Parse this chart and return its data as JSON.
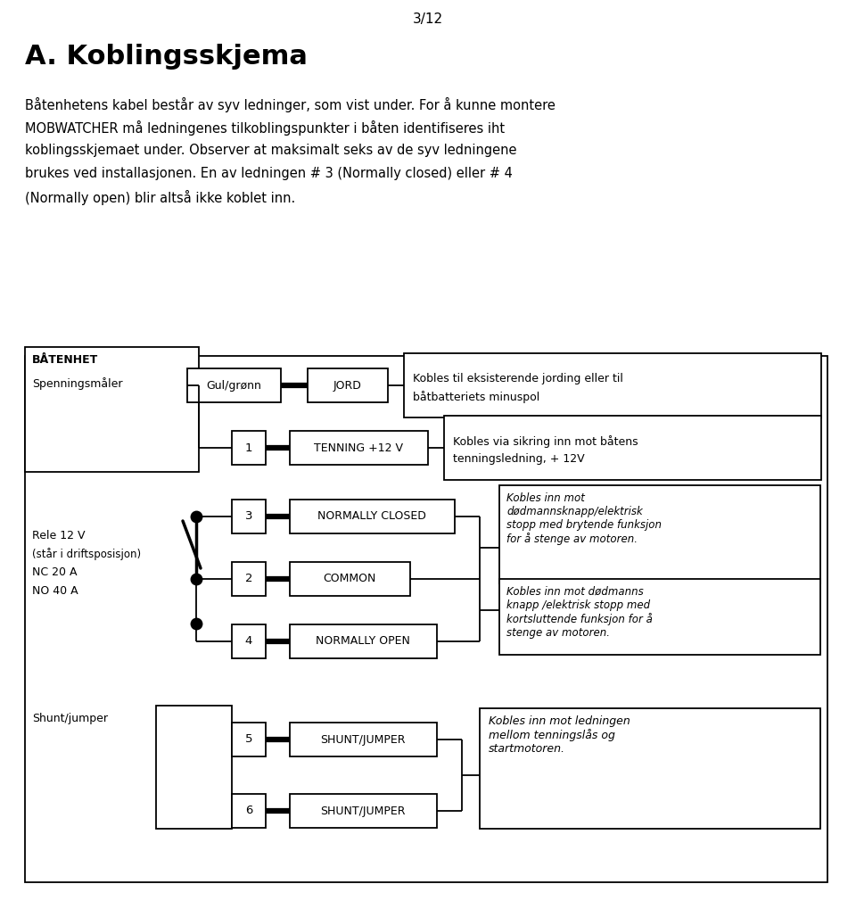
{
  "page_number": "3/12",
  "title": "A. Koblingsskjema",
  "intro_line1": "Båtenhetens kabel består av syv ledninger, som vist under. For å kunne montere",
  "intro_line2": "MOBWATCHER må ledningenes tilkoblingspunkter i båten identifiseres iht",
  "intro_line3": "koblingsskjemaet under. Observer at maksimalt seks av de syv ledningene",
  "intro_line4": "brukes ved installasjonen. En av ledningen # 3 (Normally closed) eller # 4",
  "intro_line5": "(Normally open) blir altså ikke koblet inn.",
  "bg_color": "#ffffff",
  "text_color": "#000000"
}
